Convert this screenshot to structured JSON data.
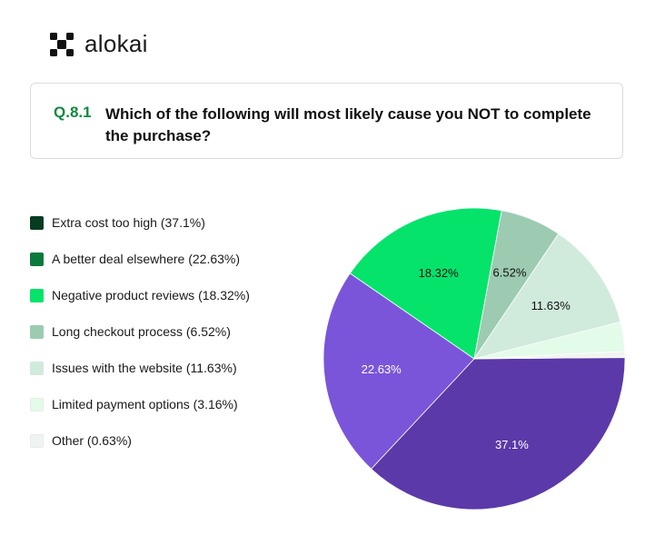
{
  "brand": {
    "name": "alokai"
  },
  "question": {
    "number": "Q.8.1",
    "text": "Which of the following will most likely cause you NOT to complete the purchase?"
  },
  "legend": [
    {
      "label": "Extra cost too high (37.1%)",
      "color": "#073b22"
    },
    {
      "label": "A better deal elsewhere (22.63%)",
      "color": "#0a7a3c"
    },
    {
      "label": "Negative product reviews (18.32%)",
      "color": "#05e36b"
    },
    {
      "label": "Long checkout process (6.52%)",
      "color": "#9ccbb1"
    },
    {
      "label": "Issues with the website (11.63%)",
      "color": "#d0eadc"
    },
    {
      "label": "Limited payment options (3.16%)",
      "color": "#e3fbe9"
    },
    {
      "label": "Other (0.63%)",
      "color": "#f0f4f1"
    }
  ],
  "chart_data": {
    "type": "pie",
    "title": "Which of the following will most likely cause you NOT to complete the purchase?",
    "categories": [
      "Extra cost too high",
      "A better deal elsewhere",
      "Negative product reviews",
      "Long checkout process",
      "Issues with the website",
      "Limited payment options",
      "Other"
    ],
    "values": [
      37.1,
      22.63,
      18.32,
      6.52,
      11.63,
      3.16,
      0.63
    ],
    "slice_colors": [
      "#5b39a8",
      "#7a55d9",
      "#05e36b",
      "#9ccbb1",
      "#d0eadc",
      "#e3fbe9",
      "#f0f4f1"
    ],
    "data_labels": [
      "37.1%",
      "22.63%",
      "18.32%",
      "6.52%",
      "11.63%",
      "",
      ""
    ],
    "label_colors": [
      "#ffffff",
      "#ffffff",
      "#111111",
      "#111111",
      "#111111",
      "#111111",
      "#111111"
    ]
  }
}
